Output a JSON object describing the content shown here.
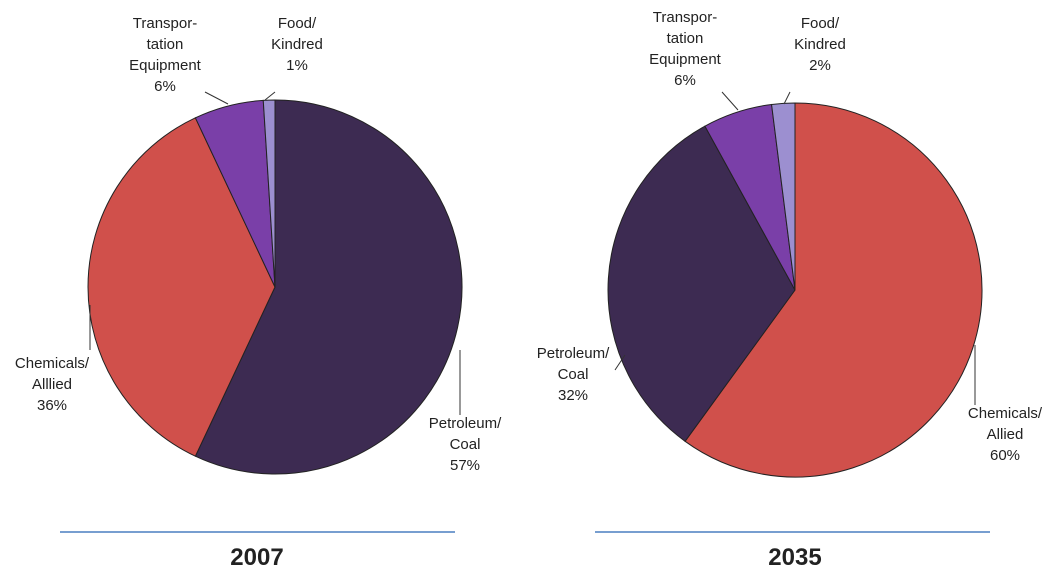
{
  "chart_data": [
    {
      "type": "pie",
      "title": "2007",
      "categories": [
        "Petroleum/\nCoal",
        "Chemicals/\nAlllied",
        "Transpor-\ntation\nEquipment",
        "Food/\nKindred"
      ],
      "values": [
        57,
        36,
        6,
        1
      ],
      "value_labels": [
        "57%",
        "36%",
        "6%",
        "1%"
      ],
      "colors": [
        "#3d2b52",
        "#d0504b",
        "#7a3fa8",
        "#9c8fd0"
      ]
    },
    {
      "type": "pie",
      "title": "2035",
      "categories": [
        "Chemicals/\nAllied",
        "Petroleum/\nCoal",
        "Transpor-\ntation\nEquipment",
        "Food/\nKindred"
      ],
      "values": [
        60,
        32,
        6,
        2
      ],
      "value_labels": [
        "60%",
        "32%",
        "6%",
        "2%"
      ],
      "colors": [
        "#d0504b",
        "#3d2b52",
        "#7a3fa8",
        "#9c8fd0"
      ]
    }
  ]
}
